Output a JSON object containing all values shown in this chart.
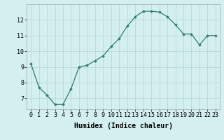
{
  "x": [
    0,
    1,
    2,
    3,
    4,
    5,
    6,
    7,
    8,
    9,
    10,
    11,
    12,
    13,
    14,
    15,
    16,
    17,
    18,
    19,
    20,
    21,
    22,
    23
  ],
  "y": [
    9.2,
    7.7,
    7.2,
    6.6,
    6.6,
    7.6,
    9.0,
    9.1,
    9.4,
    9.7,
    10.3,
    10.8,
    11.6,
    12.2,
    12.55,
    12.55,
    12.5,
    12.2,
    11.7,
    11.1,
    11.1,
    10.4,
    11.0,
    11.0
  ],
  "xlabel": "Humidex (Indice chaleur)",
  "xlim": [
    -0.5,
    23.5
  ],
  "ylim": [
    6.3,
    13.0
  ],
  "yticks": [
    7,
    8,
    9,
    10,
    11,
    12
  ],
  "xticks": [
    0,
    1,
    2,
    3,
    4,
    5,
    6,
    7,
    8,
    9,
    10,
    11,
    12,
    13,
    14,
    15,
    16,
    17,
    18,
    19,
    20,
    21,
    22,
    23
  ],
  "line_color": "#2e7d6e",
  "marker": "D",
  "marker_size": 1.8,
  "bg_color": "#d4efef",
  "grid_color": "#b8d8d8",
  "xlabel_fontsize": 7,
  "tick_fontsize": 6,
  "line_width": 0.9
}
